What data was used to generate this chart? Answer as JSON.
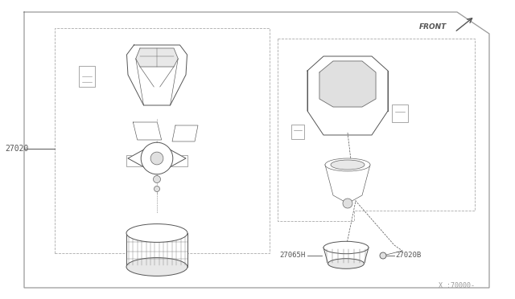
{
  "bg_color": "#ffffff",
  "line_color": "#555555",
  "thin_line": "#777777",
  "border_color": "#888888",
  "label_27020": "27020",
  "label_27065H": "27065H",
  "label_27020B": "27020B",
  "label_x70000": "X :70000-",
  "label_front": "FRONT",
  "figsize": [
    6.4,
    3.72
  ],
  "dpi": 100
}
